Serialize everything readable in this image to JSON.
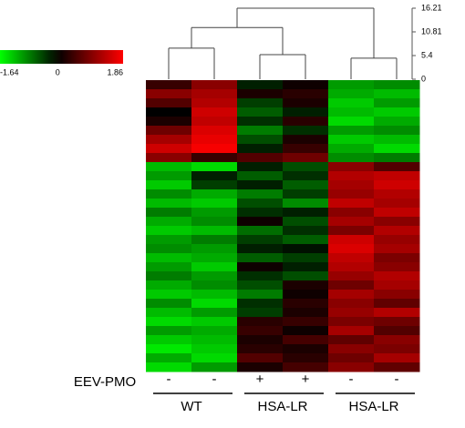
{
  "chart_data": {
    "type": "heatmap",
    "colorbar": {
      "lim": [
        -1.64,
        1.86
      ],
      "ticks": [
        -1.64,
        0,
        1.86
      ],
      "low_color": "#00ff00",
      "mid_color": "#000000",
      "high_color": "#ff0000"
    },
    "dendrogram": {
      "lim": [
        0,
        16.21
      ],
      "ticks": [
        16.21,
        10.81,
        5.4,
        0
      ],
      "tree": {
        "height": 16.2,
        "children": [
          {
            "height": 11.8,
            "children": [
              {
                "height": 7.1,
                "children": [
                  {
                    "height": 0
                  },
                  {
                    "height": 0
                  }
                ]
              },
              {
                "height": 5.6,
                "children": [
                  {
                    "height": 0
                  },
                  {
                    "height": 0
                  }
                ]
              }
            ]
          },
          {
            "height": 4.8,
            "children": [
              {
                "height": 0
              },
              {
                "height": 0
              }
            ]
          }
        ]
      }
    },
    "row_header": "EEV-PMO",
    "column_labels": [
      "-",
      "-",
      "+",
      "+",
      "-",
      "-"
    ],
    "groups": [
      "WT",
      "HSA-LR",
      "HSA-LR"
    ],
    "values": [
      [
        0.4,
        1.0,
        -0.2,
        0.1,
        -1.0,
        -0.9
      ],
      [
        1.0,
        1.2,
        0.2,
        0.3,
        -1.1,
        -1.2
      ],
      [
        0.6,
        1.3,
        -0.4,
        0.2,
        -1.3,
        -1.0
      ],
      [
        0.0,
        1.5,
        -0.6,
        -0.2,
        -1.2,
        -1.3
      ],
      [
        0.2,
        1.4,
        -0.3,
        0.3,
        -1.4,
        -1.1
      ],
      [
        0.8,
        1.6,
        -0.8,
        -0.3,
        -1.0,
        -0.9
      ],
      [
        1.2,
        1.7,
        -0.5,
        0.2,
        -1.3,
        -1.2
      ],
      [
        1.5,
        1.8,
        -0.2,
        0.4,
        -1.1,
        -1.4
      ],
      [
        1.0,
        0.4,
        0.6,
        0.8,
        -0.9,
        -0.8
      ],
      [
        -1.2,
        -1.4,
        -0.2,
        -0.5,
        1.0,
        0.6
      ],
      [
        -1.0,
        -0.2,
        -0.6,
        -0.3,
        1.3,
        1.4
      ],
      [
        -1.3,
        -0.4,
        -0.2,
        -0.6,
        1.2,
        1.5
      ],
      [
        -0.9,
        -1.1,
        -0.8,
        -0.4,
        1.1,
        1.3
      ],
      [
        -1.2,
        -1.3,
        -0.5,
        -0.9,
        1.4,
        1.2
      ],
      [
        -0.8,
        -1.0,
        -0.3,
        -0.2,
        1.0,
        1.4
      ],
      [
        -1.1,
        -0.9,
        0.1,
        -0.5,
        1.2,
        1.0
      ],
      [
        -1.3,
        -1.2,
        -0.7,
        -0.3,
        0.9,
        1.3
      ],
      [
        -1.0,
        -0.8,
        -0.4,
        -0.6,
        1.5,
        1.1
      ],
      [
        -0.9,
        -1.0,
        -0.2,
        -0.1,
        1.6,
        1.2
      ],
      [
        -1.2,
        -1.1,
        -0.6,
        -0.4,
        1.4,
        0.9
      ],
      [
        -1.0,
        -1.3,
        0.1,
        -0.2,
        1.3,
        1.0
      ],
      [
        -0.8,
        -1.0,
        -0.3,
        -0.5,
        1.1,
        1.3
      ],
      [
        -1.1,
        -0.9,
        -0.5,
        0.2,
        0.8,
        1.2
      ],
      [
        -1.3,
        -1.2,
        -0.8,
        0.1,
        1.2,
        1.0
      ],
      [
        -0.9,
        -1.4,
        -0.3,
        0.3,
        1.0,
        0.7
      ],
      [
        -1.2,
        -1.0,
        -0.4,
        0.2,
        1.1,
        1.3
      ],
      [
        -1.4,
        -1.3,
        0.3,
        0.4,
        0.9,
        0.8
      ],
      [
        -1.0,
        -1.1,
        0.4,
        0.1,
        1.2,
        0.6
      ],
      [
        -1.3,
        -1.2,
        0.2,
        0.5,
        0.7,
        1.0
      ],
      [
        -1.5,
        -1.3,
        0.3,
        0.2,
        1.0,
        0.9
      ],
      [
        -1.1,
        -1.4,
        0.6,
        0.3,
        0.8,
        1.2
      ],
      [
        -1.4,
        -1.0,
        0.2,
        0.5,
        1.0,
        0.7
      ]
    ]
  }
}
